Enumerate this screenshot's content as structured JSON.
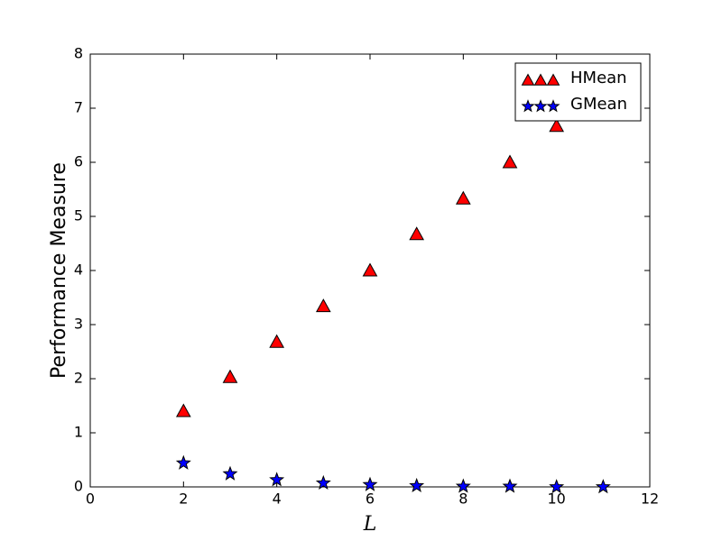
{
  "chart_data": {
    "type": "scatter",
    "x_label": "L",
    "y_label": "Performance Measure",
    "xlim": [
      0,
      12
    ],
    "xticks": [
      0,
      2,
      4,
      6,
      8,
      10,
      12
    ],
    "ylim": [
      0,
      8
    ],
    "yticks": [
      0,
      1,
      2,
      3,
      4,
      5,
      6,
      7,
      8
    ],
    "legend": "upper right",
    "series": [
      {
        "name": "HMean",
        "color": "#ff0000",
        "marker": "triangle",
        "x": [
          2,
          3,
          4,
          5,
          6,
          7,
          8,
          9,
          10
        ],
        "values": [
          1.4,
          2.03,
          2.68,
          3.34,
          4.0,
          4.67,
          5.33,
          6.0,
          6.67
        ]
      },
      {
        "name": "GMean",
        "color": "#0000ff",
        "marker": "star",
        "x": [
          2,
          3,
          4,
          5,
          6,
          7,
          8,
          9,
          10,
          11
        ],
        "values": [
          0.44,
          0.24,
          0.13,
          0.07,
          0.04,
          0.02,
          0.01,
          0.01,
          0.0,
          0.0
        ]
      }
    ]
  }
}
